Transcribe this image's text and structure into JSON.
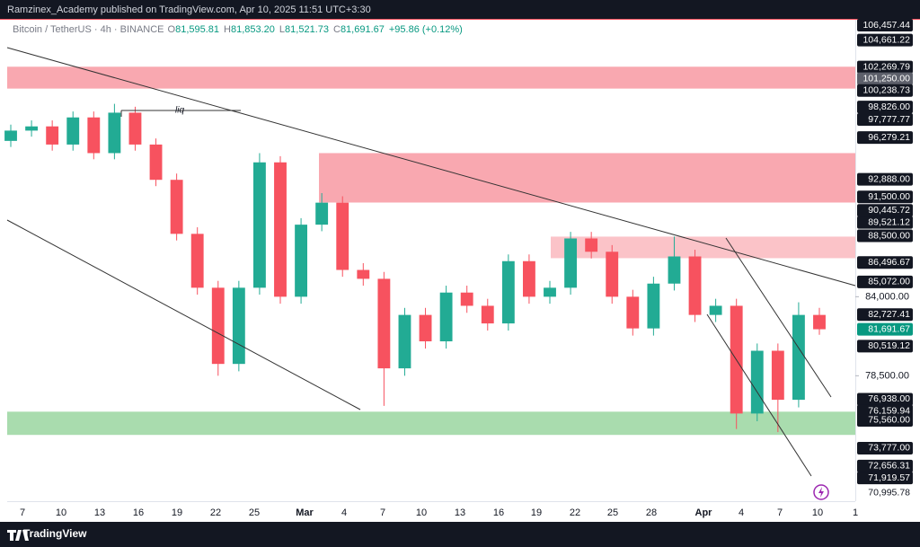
{
  "header": {
    "publisher": "Ramzinex_Academy published on TradingView.com, Apr 10, 2025 11:51 UTC+3:30"
  },
  "footer": {
    "brand": "TradingView"
  },
  "chart_data": {
    "type": "candlestick",
    "title": "Bitcoin / TetherUS · 4h · BINANCE",
    "ohlc_header": [
      {
        "key": "O",
        "value": "81,595.81"
      },
      {
        "key": "H",
        "value": "81,853.20"
      },
      {
        "key": "L",
        "value": "81,521.73"
      },
      {
        "key": "C",
        "value": "81,691.67"
      },
      {
        "key": "",
        "value": "+95.86 (+0.12%)"
      }
    ],
    "annotation": "liq",
    "log_scale": true,
    "ylim": [
      70500,
      106500
    ],
    "yticks": [
      {
        "value": 84000,
        "label": "84,000.00"
      },
      {
        "value": 78500,
        "label": "78,500.00"
      }
    ],
    "up_color": "#22ab94",
    "down_color": "#f7525f",
    "open": [
      96000,
      96850,
      97200,
      95700,
      97950,
      95000,
      98350,
      95700,
      92850,
      88650,
      84650,
      79300,
      84650,
      94250,
      84000,
      89350,
      91050,
      85950,
      85300,
      79000,
      82700,
      80850,
      84300,
      83350,
      82100,
      86600,
      84000,
      84650,
      88300,
      87300,
      84000,
      81750,
      84950,
      86950,
      82700,
      83350,
      76000,
      80200,
      76900,
      82700
    ],
    "high": [
      97350,
      97700,
      97700,
      98450,
      98450,
      99100,
      98850,
      96200,
      93350,
      89150,
      85150,
      85150,
      95000,
      94750,
      89850,
      91800,
      91550,
      86450,
      85800,
      83200,
      83200,
      84800,
      84800,
      83850,
      87100,
      87100,
      85150,
      88800,
      88800,
      87800,
      84500,
      85450,
      88450,
      87450,
      83850,
      83850,
      80700,
      80700,
      83600,
      83200
    ],
    "low": [
      95500,
      96350,
      95200,
      95200,
      94500,
      94500,
      95200,
      92350,
      88150,
      84150,
      78500,
      78800,
      84150,
      83500,
      83500,
      88850,
      85450,
      84800,
      76500,
      78500,
      80350,
      80350,
      82850,
      81600,
      81600,
      83500,
      83500,
      84150,
      86800,
      83500,
      81250,
      81250,
      84450,
      82200,
      82200,
      75000,
      75500,
      74800,
      76400,
      81300
    ],
    "close": [
      96850,
      97200,
      95700,
      97950,
      95000,
      98350,
      95700,
      92850,
      88650,
      84650,
      79300,
      84650,
      94250,
      84000,
      89350,
      91050,
      85950,
      85300,
      79000,
      82700,
      80850,
      84300,
      83350,
      82100,
      86600,
      84000,
      84650,
      88300,
      87300,
      84000,
      81750,
      84950,
      86950,
      82700,
      83350,
      76000,
      80200,
      76900,
      82700,
      81691.67
    ],
    "zones": [
      {
        "from": 100400,
        "to": 102300,
        "color": "#f9a8b0"
      },
      {
        "from": 91060,
        "to": 95000,
        "color": "#f9a8b0"
      },
      {
        "from": 86820,
        "to": 88440,
        "color": "#fbc3c8"
      },
      {
        "from": 74620,
        "to": 76120,
        "color": "#a9dcae"
      }
    ],
    "price_labels": [
      {
        "value": 106457.44,
        "label": "106,457.44",
        "style": "dark"
      },
      {
        "value": 104661.22,
        "label": "104,661.22",
        "style": "dark"
      },
      {
        "value": 102269.79,
        "label": "102,269.79",
        "style": "dark"
      },
      {
        "value": 101250,
        "label": "101,250.00",
        "style": "gray"
      },
      {
        "value": 100238.73,
        "label": "100,238.73",
        "style": "dark"
      },
      {
        "value": 98826,
        "label": "98,826.00",
        "style": "dark"
      },
      {
        "value": 97777.77,
        "label": "97,777.77",
        "style": "dark"
      },
      {
        "value": 96279.21,
        "label": "96,279.21",
        "style": "dark"
      },
      {
        "value": 92888,
        "label": "92,888.00",
        "style": "dark"
      },
      {
        "value": 91500,
        "label": "91,500.00",
        "style": "dark"
      },
      {
        "value": 90445.72,
        "label": "90,445.72",
        "style": "dark"
      },
      {
        "value": 89521.12,
        "label": "89,521.12",
        "style": "dark"
      },
      {
        "value": 88500,
        "label": "88,500.00",
        "style": "dark"
      },
      {
        "value": 86496.67,
        "label": "86,496.67",
        "style": "dark"
      },
      {
        "value": 85072,
        "label": "85,072.00",
        "style": "dark"
      },
      {
        "value": 82727.41,
        "label": "82,727.41",
        "style": "dark"
      },
      {
        "value": 81691.67,
        "label": "81,691.67",
        "style": "current"
      },
      {
        "value": 80519.12,
        "label": "80,519.12",
        "style": "dark"
      },
      {
        "value": 76938,
        "label": "76,938.00",
        "style": "dark"
      },
      {
        "value": 76159.94,
        "label": "76,159.94",
        "style": "dark"
      },
      {
        "value": 75560,
        "label": "75,560.00",
        "style": "dark"
      },
      {
        "value": 73777,
        "label": "73,777.00",
        "style": "dark"
      },
      {
        "value": 72656.31,
        "label": "72,656.31",
        "style": "dark"
      },
      {
        "value": 71919.57,
        "label": "71,919.57",
        "style": "dark"
      },
      {
        "value": 70995.78,
        "label": "70,995.78",
        "style": "plain"
      }
    ],
    "x_labels": [
      "7",
      "10",
      "13",
      "16",
      "19",
      "22",
      "25",
      "Mar",
      "4",
      "7",
      "10",
      "13",
      "16",
      "19",
      "22",
      "25",
      "28",
      "Apr",
      "4",
      "7",
      "10",
      "1"
    ]
  }
}
